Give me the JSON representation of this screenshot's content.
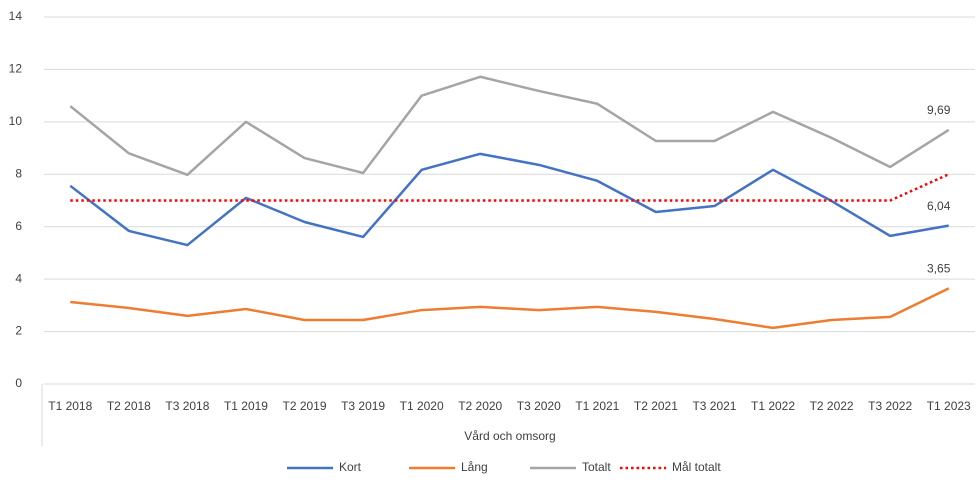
{
  "chart_data": {
    "type": "line",
    "x_label": "Vård och omsorg",
    "categories": [
      "T1 2018",
      "T2 2018",
      "T3 2018",
      "T1 2019",
      "T2 2019",
      "T3 2019",
      "T1 2020",
      "T2 2020",
      "T3 2020",
      "T1 2021",
      "T2 2021",
      "T3 2021",
      "T1 2022",
      "T2 2022",
      "T3 2022",
      "T1 2023"
    ],
    "series": [
      {
        "name": "Kort",
        "color": "#4472c4",
        "style": "solid",
        "values": [
          7.56,
          5.84,
          5.3,
          7.1,
          6.18,
          5.61,
          8.17,
          8.78,
          8.36,
          7.75,
          6.56,
          6.79,
          8.17,
          6.98,
          5.65,
          6.04
        ],
        "value_labels": [
          null,
          null,
          null,
          null,
          null,
          null,
          null,
          null,
          null,
          null,
          null,
          null,
          null,
          null,
          null,
          "6,04"
        ]
      },
      {
        "name": "Lång",
        "color": "#ed7d31",
        "style": "solid",
        "values": [
          3.13,
          2.9,
          2.6,
          2.86,
          2.44,
          2.44,
          2.82,
          2.94,
          2.82,
          2.94,
          2.75,
          2.48,
          2.14,
          2.44,
          2.56,
          3.65
        ],
        "value_labels": [
          null,
          null,
          null,
          null,
          null,
          null,
          null,
          null,
          null,
          null,
          null,
          null,
          null,
          null,
          null,
          "3,65"
        ]
      },
      {
        "name": "Totalt",
        "color": "#a5a5a5",
        "style": "solid",
        "values": [
          10.6,
          8.8,
          7.98,
          10.0,
          8.62,
          8.05,
          11.0,
          11.72,
          11.18,
          10.69,
          9.27,
          9.27,
          10.38,
          9.39,
          8.28,
          9.69
        ],
        "value_labels": [
          null,
          null,
          null,
          null,
          null,
          null,
          null,
          null,
          null,
          null,
          null,
          null,
          null,
          null,
          null,
          "9,69"
        ]
      },
      {
        "name": "Mål totalt",
        "color": "#ff0000",
        "style": "dotted",
        "values": [
          7,
          7,
          7,
          7,
          7,
          7,
          7,
          7,
          7,
          7,
          7,
          7,
          7,
          7,
          7,
          8
        ]
      }
    ],
    "ylim": [
      0,
      14
    ],
    "yticks": [
      0,
      2,
      4,
      6,
      8,
      10,
      12,
      14
    ],
    "grid": true,
    "legend": "bottom"
  }
}
